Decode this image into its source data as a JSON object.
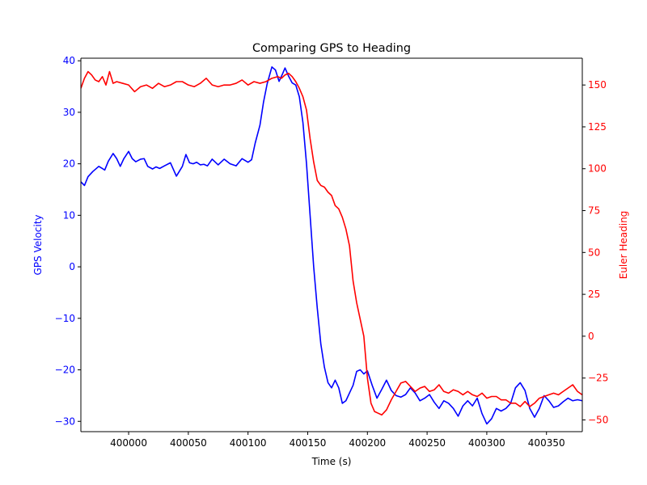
{
  "chart_data": {
    "type": "line",
    "title": "Comparing GPS to Heading",
    "xlabel": "Time (s)",
    "xlim": [
      399960,
      400380
    ],
    "x_ticks": [
      400000,
      400050,
      400100,
      400150,
      400200,
      400250,
      400300,
      400350
    ],
    "x_tick_labels": [
      "400000",
      "400050",
      "400100",
      "400150",
      "400200",
      "400250",
      "400300",
      "400350"
    ],
    "grid": false,
    "axes": {
      "left": {
        "label": "GPS Velocity",
        "color": "#0000ff",
        "ylim": [
          -32,
          40.5
        ],
        "ticks": [
          -30,
          -20,
          -10,
          0,
          10,
          20,
          30,
          40
        ],
        "tick_labels": [
          "−30",
          "−20",
          "−10",
          "0",
          "10",
          "20",
          "30",
          "40"
        ]
      },
      "right": {
        "label": "Euler Heading",
        "color": "#ff0000",
        "ylim": [
          -57,
          166
        ],
        "ticks": [
          -50,
          -25,
          0,
          25,
          50,
          75,
          100,
          125,
          150
        ],
        "tick_labels": [
          "−50",
          "−25",
          "0",
          "25",
          "50",
          "75",
          "100",
          "125",
          "150"
        ]
      }
    },
    "series": [
      {
        "axis": "left",
        "color": "#0000ff",
        "x": [
          399960,
          399963,
          399966,
          399970,
          399975,
          399980,
          399983,
          399987,
          399990,
          399993,
          399996,
          400000,
          400003,
          400006,
          400010,
          400013,
          400016,
          400020,
          400023,
          400026,
          400030,
          400035,
          400040,
          400045,
          400048,
          400051,
          400054,
          400057,
          400060,
          400063,
          400066,
          400070,
          400075,
          400080,
          400085,
          400090,
          400095,
          400100,
          400103,
          400106,
          400110,
          400113,
          400116,
          400120,
          400123,
          400126,
          400129,
          400131,
          400134,
          400137,
          400140,
          400143,
          400146,
          400149,
          400152,
          400155,
          400158,
          400161,
          400164,
          400167,
          400170,
          400173,
          400176,
          400179,
          400182,
          400185,
          400188,
          400191,
          400194,
          400197,
          400200,
          400204,
          400208,
          400212,
          400216,
          400220,
          400224,
          400228,
          400232,
          400236,
          400240,
          400244,
          400248,
          400252,
          400256,
          400260,
          400264,
          400268,
          400272,
          400276,
          400280,
          400284,
          400288,
          400292,
          400296,
          400300,
          400304,
          400308,
          400312,
          400316,
          400320,
          400324,
          400328,
          400332,
          400336,
          400340,
          400344,
          400348,
          400352,
          400356,
          400360,
          400364,
          400368,
          400372,
          400376,
          400380
        ],
        "y": [
          16.5,
          15.8,
          17.5,
          18.5,
          19.5,
          18.8,
          20.5,
          22.0,
          21.0,
          19.5,
          21.0,
          22.4,
          21.0,
          20.4,
          20.9,
          21.0,
          19.5,
          19.0,
          19.4,
          19.1,
          19.6,
          20.2,
          17.6,
          19.5,
          21.8,
          20.2,
          20.0,
          20.3,
          19.8,
          19.9,
          19.6,
          20.9,
          19.8,
          20.9,
          20.0,
          19.6,
          21.0,
          20.3,
          20.8,
          24.0,
          27.5,
          32.0,
          35.5,
          38.8,
          38.2,
          36.0,
          37.5,
          38.6,
          37.0,
          35.7,
          35.3,
          33.0,
          28.0,
          20.0,
          10.0,
          0.0,
          -8.0,
          -15.0,
          -19.5,
          -22.5,
          -23.5,
          -22.0,
          -23.5,
          -26.5,
          -26.0,
          -24.5,
          -23.0,
          -20.3,
          -20.0,
          -20.8,
          -20.2,
          -23.0,
          -25.5,
          -23.8,
          -22.0,
          -24.0,
          -25.0,
          -25.3,
          -24.8,
          -23.5,
          -24.5,
          -26.0,
          -25.5,
          -24.8,
          -26.3,
          -27.5,
          -26.0,
          -26.5,
          -27.5,
          -29.0,
          -27.0,
          -26.0,
          -27.0,
          -25.5,
          -28.5,
          -30.5,
          -29.5,
          -27.5,
          -28.0,
          -27.5,
          -26.5,
          -23.5,
          -22.5,
          -24.0,
          -27.5,
          -29.2,
          -27.5,
          -25.0,
          -26.0,
          -27.3,
          -27.0,
          -26.2,
          -25.5,
          -26.0,
          -25.8,
          -26.0
        ]
      },
      {
        "axis": "right",
        "color": "#ff0000",
        "x": [
          399960,
          399963,
          399966,
          399969,
          399972,
          399975,
          399978,
          399981,
          399984,
          399987,
          399990,
          399995,
          400000,
          400005,
          400010,
          400015,
          400020,
          400025,
          400030,
          400035,
          400040,
          400045,
          400050,
          400055,
          400060,
          400065,
          400070,
          400075,
          400080,
          400085,
          400090,
          400095,
          400100,
          400105,
          400110,
          400115,
          400120,
          400125,
          400128,
          400131,
          400134,
          400137,
          400140,
          400143,
          400146,
          400149,
          400152,
          400155,
          400158,
          400161,
          400164,
          400167,
          400170,
          400173,
          400176,
          400179,
          400182,
          400185,
          400188,
          400191,
          400194,
          400197,
          400200,
          400203,
          400206,
          400209,
          400212,
          400216,
          400220,
          400224,
          400228,
          400232,
          400236,
          400240,
          400244,
          400248,
          400252,
          400256,
          400260,
          400264,
          400268,
          400272,
          400276,
          400280,
          400284,
          400288,
          400292,
          400296,
          400300,
          400304,
          400308,
          400312,
          400316,
          400320,
          400324,
          400328,
          400332,
          400336,
          400340,
          400344,
          400348,
          400352,
          400356,
          400360,
          400364,
          400368,
          400372,
          400376,
          400380
        ],
        "y": [
          148,
          154,
          158,
          156,
          153,
          152,
          155,
          150,
          158,
          151,
          152,
          151,
          150,
          146,
          149,
          150,
          148,
          151,
          149,
          150,
          152,
          152,
          150,
          149,
          151,
          154,
          150,
          149,
          150,
          150,
          151,
          153,
          150,
          152,
          151,
          152,
          154,
          155,
          154,
          156,
          157,
          155,
          152,
          148,
          143,
          135,
          118,
          104,
          93,
          90,
          89,
          86,
          84,
          78,
          76,
          71,
          64,
          54,
          33,
          20,
          10,
          0,
          -25,
          -40,
          -45,
          -46,
          -47,
          -44,
          -38,
          -33,
          -28,
          -27,
          -30,
          -33,
          -31,
          -30,
          -33,
          -32,
          -29,
          -33,
          -34,
          -32,
          -33,
          -35,
          -33,
          -35,
          -36,
          -34,
          -37,
          -36,
          -36,
          -38,
          -38,
          -40,
          -40,
          -42,
          -39,
          -42,
          -40,
          -37,
          -36,
          -35,
          -34,
          -35,
          -33,
          -31,
          -29,
          -33,
          -35
        ]
      }
    ]
  }
}
